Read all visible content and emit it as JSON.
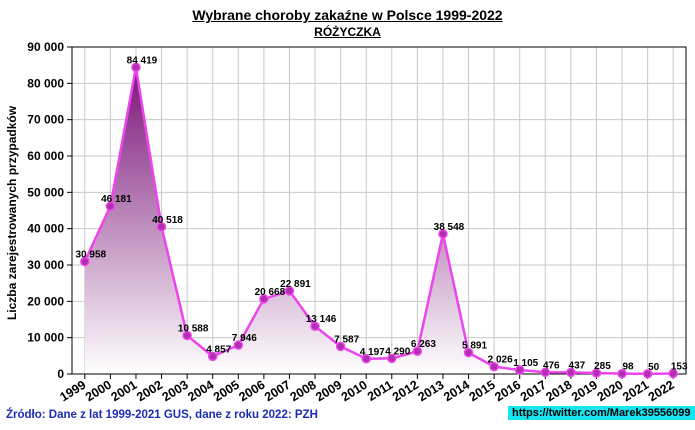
{
  "chart_data": {
    "type": "area",
    "title": "Wybrane choroby zakaźne w Polsce 1999-2022",
    "subtitle": "RÓŻYCZKA",
    "xlabel": "",
    "ylabel": "Liczba zarejestrowanych przypadków",
    "ylim": [
      0,
      90000
    ],
    "yticks": [
      "0",
      "10 000",
      "20 000",
      "30 000",
      "40 000",
      "50 000",
      "60 000",
      "70 000",
      "80 000",
      "90 000"
    ],
    "categories": [
      "1999",
      "2000",
      "2001",
      "2002",
      "2003",
      "2004",
      "2005",
      "2006",
      "2007",
      "2008",
      "2009",
      "2010",
      "2011",
      "2012",
      "2013",
      "2014",
      "2015",
      "2016",
      "2017",
      "2018",
      "2019",
      "2020",
      "2021",
      "2022"
    ],
    "values": [
      30958,
      46181,
      84419,
      40518,
      10588,
      4857,
      7946,
      20668,
      22891,
      13146,
      7587,
      4197,
      4290,
      6263,
      38548,
      5891,
      2026,
      1105,
      476,
      437,
      285,
      98,
      50,
      153
    ],
    "value_labels": [
      "30 958",
      "46 181",
      "84 419",
      "40 518",
      "10 588",
      "4 857",
      "7 946",
      "20 668",
      "22 891",
      "13 146",
      "7 587",
      "4 197",
      "4 290",
      "6 263",
      "38 548",
      "5 891",
      "2 026",
      "1 105",
      "476",
      "437",
      "285",
      "98",
      "50",
      "153"
    ],
    "grid": true,
    "colors": {
      "line": "#ee44ee",
      "marker": "#b030b0",
      "fill_top": "#7a1478",
      "fill_bottom": "#ffffff",
      "source_text": "#1a2db4",
      "link_bg": "#18e4f0"
    }
  },
  "source_note": "Źródło: Dane z lat 1999-2021 GUS, dane z roku 2022: PZH",
  "link_label": "https://twitter.com/Marek39556099"
}
